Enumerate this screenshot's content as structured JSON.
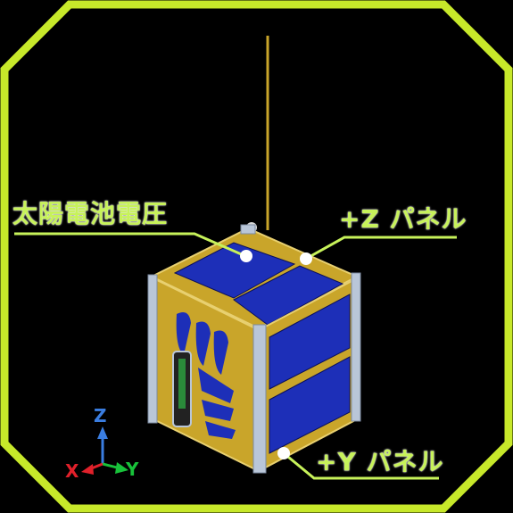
{
  "labels": {
    "solar_voltage": "太陽電池電圧",
    "z_panel": "+Z パネル",
    "y_panel": "+Y パネル"
  },
  "axes": {
    "z": "Z",
    "x": "X",
    "y": "Y"
  },
  "colors": {
    "frame": "#c7e82a",
    "leader": "#c7f25a",
    "panel_gold": "#c9a52a",
    "solar_cell": "#1d2fb8",
    "rail": "#b9c6d8",
    "axis_z": "#3a7de0",
    "axis_y": "#18c23a",
    "axis_x": "#e0202a"
  }
}
